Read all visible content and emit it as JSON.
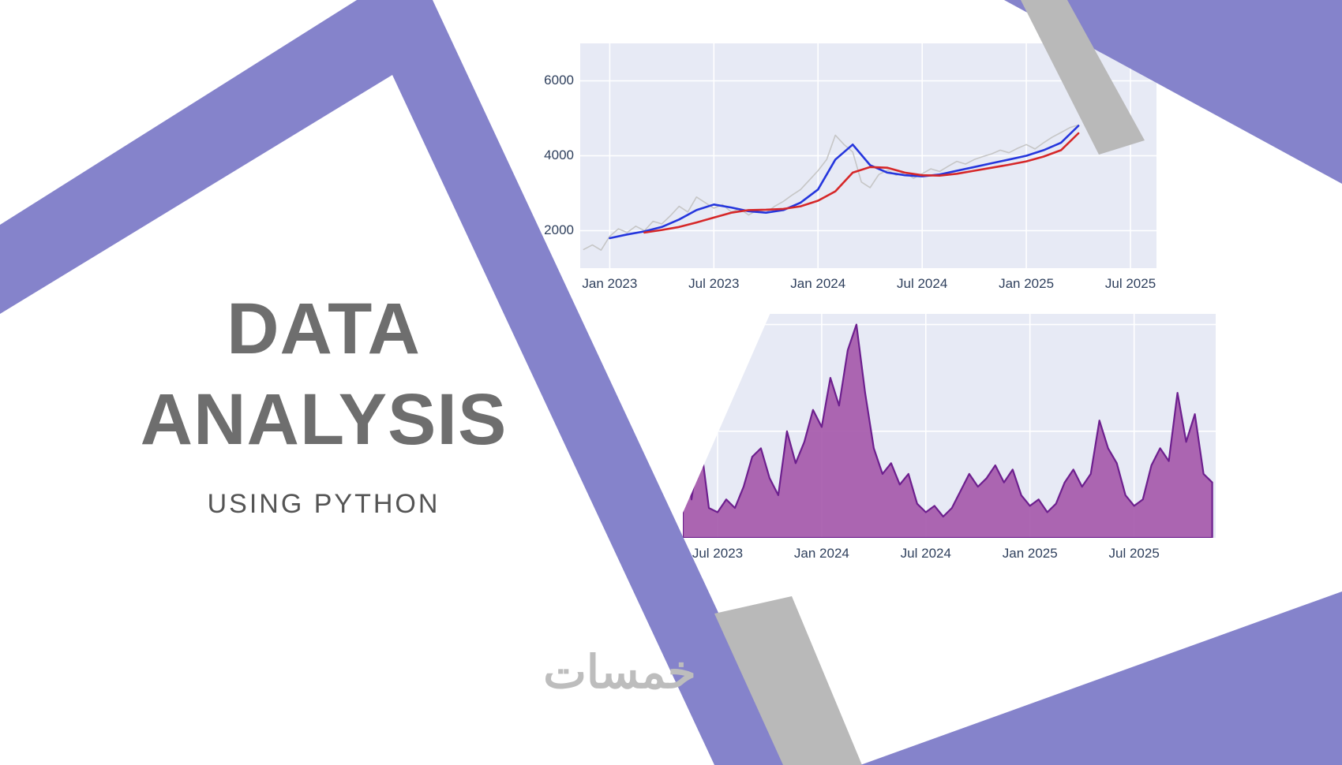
{
  "slide": {
    "title_line1": "DATA",
    "title_line2": "ANALYSIS",
    "subtitle": "USING PYTHON",
    "watermark": "خمسات"
  },
  "colors": {
    "accent_purple": "#8583cb",
    "shape_gray": "#b9b9b9",
    "title_gray": "#6e6e6e",
    "subtitle_gray": "#545454",
    "watermark_gray": "#bdbdbd",
    "axis_text": "#2e3f5c",
    "plot_background": "#e7eaf5",
    "grid_line": "#ffffff",
    "gray_series": "#c6c6c6",
    "blue_series": "#2536dd",
    "red_series": "#d62728",
    "area_fill": "#a456aa",
    "area_line": "#6d1f8e"
  },
  "chart_data": [
    {
      "type": "line",
      "title": "",
      "xlabel": "",
      "ylabel": "",
      "grid": true,
      "legend": false,
      "plot_bg": "#e7eaf5",
      "xlim": [
        -1.7,
        31.5
      ],
      "ylim": [
        1000,
        7000
      ],
      "x_tick_positions": [
        0,
        6,
        12,
        18,
        24,
        30
      ],
      "x_tick_labels": [
        "Jan 2023",
        "Jul 2023",
        "Jan 2024",
        "Jul 2024",
        "Jan 2025",
        "Jul 2025"
      ],
      "y_ticks": [
        2000,
        4000,
        6000
      ],
      "y_gridlines": [
        2000,
        4000,
        6000
      ],
      "series": [
        {
          "name": "gray-raw-series",
          "color": "#c6c6c6",
          "width": 1.6,
          "x": [
            -1.5,
            -1.0,
            -0.5,
            0.0,
            0.5,
            1.0,
            1.5,
            2.0,
            2.5,
            3.0,
            3.5,
            4.0,
            4.5,
            5.0,
            5.5,
            6.0,
            6.5,
            7.0,
            7.5,
            8.0,
            8.5,
            9.0,
            9.5,
            10.0,
            10.5,
            11.0,
            11.5,
            12.0,
            12.5,
            13.0,
            13.5,
            14.0,
            14.5,
            15.0,
            15.5,
            16.0,
            16.5,
            17.0,
            17.5,
            18.0,
            18.5,
            19.0,
            19.5,
            20.0,
            20.5,
            21.0,
            21.5,
            22.0,
            22.5,
            23.0,
            23.5,
            24.0,
            24.5,
            25.0,
            25.5,
            26.0,
            26.5,
            27.0
          ],
          "values": [
            1500,
            1620,
            1480,
            1850,
            2050,
            1950,
            2120,
            2000,
            2250,
            2180,
            2400,
            2650,
            2500,
            2900,
            2750,
            2600,
            2700,
            2500,
            2580,
            2420,
            2550,
            2480,
            2650,
            2780,
            2950,
            3100,
            3350,
            3600,
            3900,
            4550,
            4300,
            4100,
            3300,
            3150,
            3500,
            3620,
            3480,
            3550,
            3400,
            3520,
            3650,
            3580,
            3720,
            3850,
            3780,
            3900,
            3980,
            4050,
            4150,
            4080,
            4200,
            4300,
            4180,
            4350,
            4500,
            4620,
            4750,
            4820
          ]
        },
        {
          "name": "blue-smoothed-series",
          "color": "#2536dd",
          "width": 2.6,
          "x": [
            0,
            1,
            2,
            3,
            4,
            5,
            6,
            7,
            8,
            9,
            10,
            11,
            12,
            13,
            14,
            15,
            16,
            17,
            18,
            19,
            20,
            21,
            22,
            23,
            24,
            25,
            26,
            27
          ],
          "values": [
            1800,
            1900,
            1980,
            2100,
            2300,
            2550,
            2700,
            2620,
            2520,
            2480,
            2550,
            2750,
            3100,
            3900,
            4300,
            3750,
            3550,
            3480,
            3450,
            3500,
            3600,
            3700,
            3800,
            3900,
            4000,
            4150,
            4350,
            4800
          ]
        },
        {
          "name": "red-smoothed-series",
          "color": "#d62728",
          "width": 2.6,
          "x": [
            2,
            3,
            4,
            5,
            6,
            7,
            8,
            9,
            10,
            11,
            12,
            13,
            14,
            15,
            16,
            17,
            18,
            19,
            20,
            21,
            22,
            23,
            24,
            25,
            26,
            27
          ],
          "values": [
            1950,
            2020,
            2100,
            2220,
            2350,
            2480,
            2550,
            2560,
            2580,
            2650,
            2800,
            3050,
            3550,
            3700,
            3680,
            3550,
            3480,
            3470,
            3520,
            3600,
            3680,
            3760,
            3850,
            3980,
            4150,
            4600
          ]
        }
      ]
    },
    {
      "type": "area",
      "title": "",
      "xlabel": "",
      "ylabel": "",
      "grid": true,
      "legend": false,
      "plot_bg": "#e7eaf5",
      "fill_color": "#a456aa",
      "line_color": "#6d1f8e",
      "xlim": [
        4.0,
        34.7
      ],
      "ylim": [
        0,
        105
      ],
      "x_tick_positions": [
        6,
        12,
        18,
        24,
        30
      ],
      "x_tick_labels": [
        "Jul 2023",
        "Jan 2024",
        "Jul 2024",
        "Jan 2025",
        "Jul 2025"
      ],
      "y_gridlines": [
        50,
        100
      ],
      "x": [
        4.0,
        4.5,
        5.0,
        5.5,
        6.0,
        6.5,
        7.0,
        7.5,
        8.0,
        8.5,
        9.0,
        9.5,
        10.0,
        10.5,
        11.0,
        11.5,
        12.0,
        12.5,
        13.0,
        13.5,
        14.0,
        14.5,
        15.0,
        15.5,
        16.0,
        16.5,
        17.0,
        17.5,
        18.0,
        18.5,
        19.0,
        19.5,
        20.0,
        20.5,
        21.0,
        21.5,
        22.0,
        22.5,
        23.0,
        23.5,
        24.0,
        24.5,
        25.0,
        25.5,
        26.0,
        26.5,
        27.0,
        27.5,
        28.0,
        28.5,
        29.0,
        29.5,
        30.0,
        30.5,
        31.0,
        31.5,
        32.0,
        32.5,
        33.0,
        33.5,
        34.0,
        34.5
      ],
      "values": [
        52,
        18,
        46,
        14,
        12,
        18,
        14,
        24,
        38,
        42,
        28,
        20,
        50,
        35,
        45,
        60,
        52,
        75,
        62,
        88,
        100,
        68,
        42,
        30,
        35,
        25,
        30,
        16,
        12,
        15,
        10,
        14,
        22,
        30,
        24,
        28,
        34,
        26,
        32,
        20,
        15,
        18,
        12,
        16,
        26,
        32,
        24,
        30,
        55,
        42,
        35,
        20,
        15,
        18,
        34,
        42,
        36,
        68,
        45,
        58,
        30,
        26
      ]
    }
  ]
}
